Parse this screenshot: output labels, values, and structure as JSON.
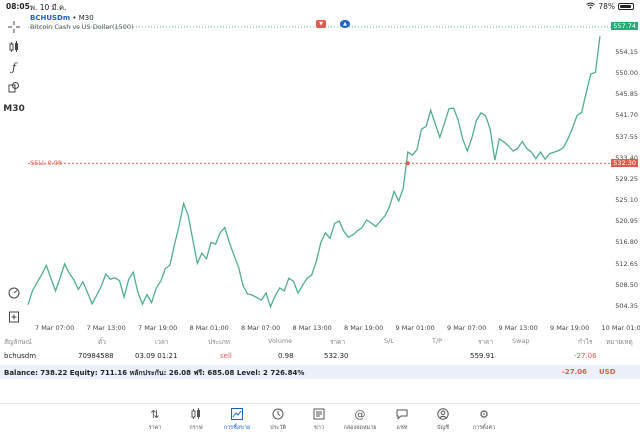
{
  "status": {
    "time": "08:05",
    "date": "พ. 10 มี.ค.",
    "battery": "78%",
    "battery_level": 0.78
  },
  "toolbar": {
    "timeframe": "M30"
  },
  "chart": {
    "symbol": "BCHUSDm",
    "timeframe_suffix": " • M30",
    "subtitle": "Bitcoin Cash vs US Dollar(1500)",
    "current_price": "557.74",
    "sell_label": "SELL 0.98",
    "sell_price": "532.30",
    "colors": {
      "line": "#4fae8a",
      "sell": "#e05a4d",
      "bid": "#2aa876"
    }
  },
  "chart_data": {
    "type": "line",
    "price_ticks": [
      "554.15",
      "550.00",
      "545.85",
      "541.70",
      "537.55",
      "533.40",
      "529.25",
      "525.10",
      "520.95",
      "516.80",
      "512.65",
      "508.50",
      "504.35"
    ],
    "time_ticks": [
      "7 Mar 07:00",
      "7 Mar 13:00",
      "7 Mar 19:00",
      "8 Mar 01:00",
      "8 Mar 07:00",
      "8 Mar 13:00",
      "8 Mar 19:00",
      "9 Mar 01:00",
      "9 Mar 07:00",
      "9 Mar 13:00",
      "9 Mar 19:00",
      "10 Mar 01:00"
    ],
    "ylim": [
      502,
      559
    ],
    "y": [
      504.6,
      507.4,
      509.0,
      510.5,
      512.3,
      509.8,
      507.3,
      509.8,
      512.6,
      510.8,
      509.5,
      507.6,
      509.1,
      507.0,
      504.8,
      506.4,
      508.2,
      510.6,
      509.6,
      509.9,
      509.3,
      506.1,
      509.6,
      511.0,
      507.1,
      504.7,
      506.6,
      505.0,
      507.8,
      509.2,
      511.7,
      512.3,
      516.3,
      520.0,
      524.4,
      522.1,
      517.4,
      512.7,
      514.7,
      513.6,
      516.8,
      516.5,
      518.7,
      519.7,
      516.8,
      514.3,
      512.0,
      508.3,
      506.7,
      506.5,
      506.0,
      505.5,
      506.9,
      504.2,
      506.3,
      507.9,
      507.3,
      509.8,
      509.2,
      506.9,
      508.4,
      509.8,
      510.4,
      513.1,
      516.8,
      518.7,
      517.6,
      520.5,
      521.0,
      519.0,
      517.8,
      518.3,
      519.1,
      519.7,
      521.2,
      520.6,
      519.9,
      521.0,
      522.0,
      523.8,
      526.8,
      524.9,
      527.4,
      534.5,
      533.9,
      535.0,
      539.0,
      539.5,
      542.7,
      540.0,
      537.4,
      540.1,
      543.0,
      543.1,
      540.8,
      537.1,
      534.7,
      537.3,
      540.7,
      542.2,
      541.6,
      539.0,
      532.9,
      537.1,
      536.5,
      535.7,
      534.7,
      535.2,
      536.6,
      535.2,
      534.5,
      533.2,
      534.5,
      533.1,
      534.2,
      534.5,
      534.8,
      535.4,
      537.1,
      539.2,
      541.7,
      542.3,
      546.2,
      549.8,
      550.1,
      557.2
    ]
  },
  "table": {
    "headers": {
      "symbol": "สัญลักษณ์",
      "ticket": "ตั๋ว",
      "time": "เวลา",
      "type": "ประเภท",
      "volume": "Volume",
      "price": "ราคา",
      "sl": "S/L",
      "tp": "T/P",
      "current": "ราคา",
      "swap": "Swap",
      "profit": "กำไร",
      "comment": "หมายเหตุ"
    },
    "row": {
      "symbol": "bchusdm",
      "ticket": "70984588",
      "time": "03.09 01:21",
      "type": "sell",
      "volume": "0.98",
      "price": "532.30",
      "current": "559.91",
      "profit": "-27.06"
    }
  },
  "balance": {
    "text": "Balance: 738.22 Equity: 711.16 หลักประกัน: 26.08 ฟรี: 685.08 Level: 2 726.84%",
    "profit": "-27.06",
    "currency": "USD"
  },
  "nav": [
    {
      "label": "ราคา",
      "icon": "quotes-icon"
    },
    {
      "label": "กราฟ",
      "icon": "candles-icon"
    },
    {
      "label": "การซื้อขาย",
      "icon": "trade-chart-icon"
    },
    {
      "label": "ประวัติ",
      "icon": "history-icon"
    },
    {
      "label": "ข่าว",
      "icon": "news-icon"
    },
    {
      "label": "กล่องจดหมาย",
      "icon": "mailbox-icon"
    },
    {
      "label": "แชท",
      "icon": "chat-icon"
    },
    {
      "label": "บัญชี",
      "icon": "account-icon"
    },
    {
      "label": "การตั้งค่า",
      "icon": "settings-icon"
    }
  ]
}
